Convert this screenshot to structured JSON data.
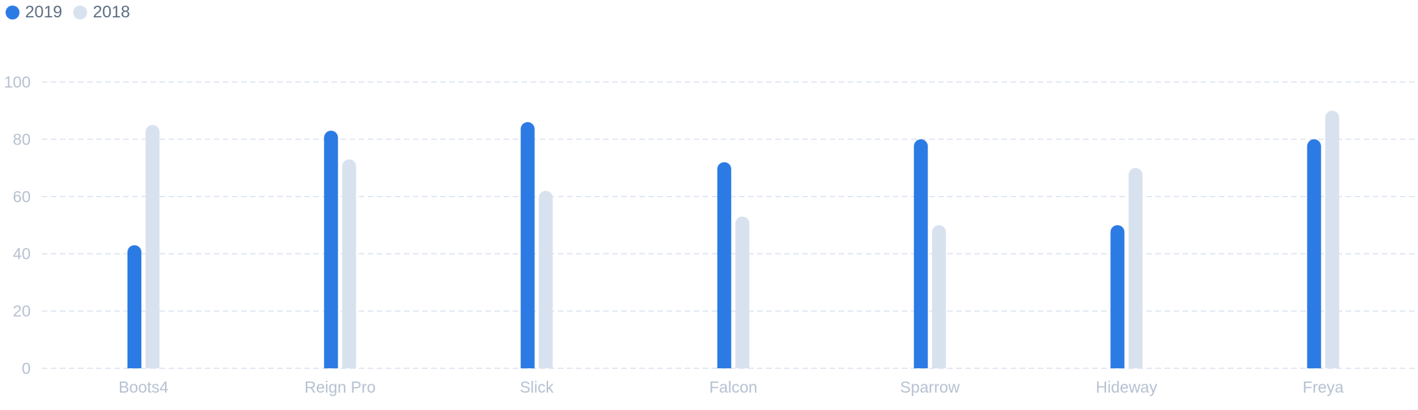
{
  "chart_data": {
    "type": "bar",
    "categories": [
      "Boots4",
      "Reign Pro",
      "Slick",
      "Falcon",
      "Sparrow",
      "Hideway",
      "Freya"
    ],
    "series": [
      {
        "name": "2019",
        "values": [
          43,
          83,
          86,
          72,
          80,
          50,
          80
        ],
        "color": "#2c7be5"
      },
      {
        "name": "2018",
        "values": [
          85,
          73,
          62,
          53,
          50,
          70,
          90
        ],
        "color": "#d8e2ef"
      }
    ],
    "yticks": [
      "0",
      "20",
      "40",
      "60",
      "80",
      "100"
    ],
    "ylim": [
      0,
      100
    ],
    "grid": true,
    "legend_position": "top-left",
    "title": "",
    "xlabel": "",
    "ylabel": "",
    "colors": {
      "grid": "#d8e2ef",
      "tick_text": "#b6c1d2",
      "legend_text": "#5e6e82"
    }
  }
}
